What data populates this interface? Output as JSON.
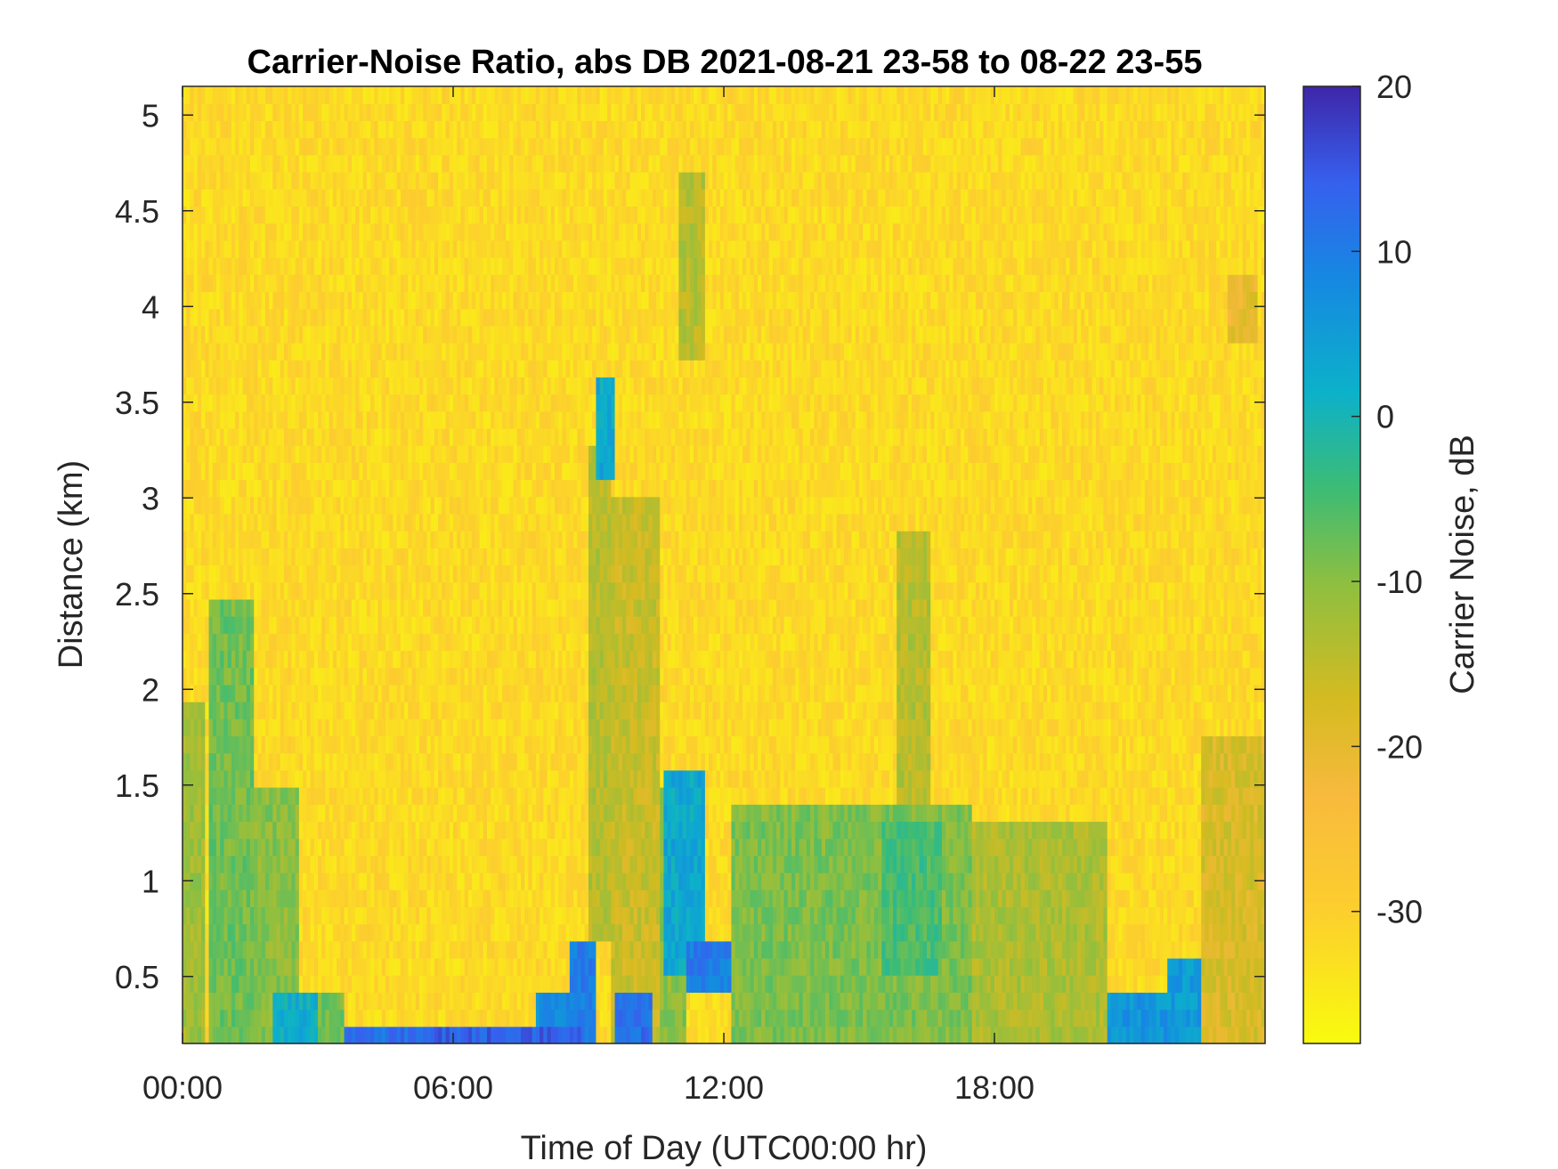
{
  "chart_data": {
    "type": "heatmap",
    "title": "Carrier-Noise Ratio, abs DB 2021-08-21 23-58 to 08-22 23-55",
    "xlabel": "Time of Day (UTC00:00 hr)",
    "ylabel": "Distance (km)",
    "colorbar_label": "Carrier Noise, dB",
    "colormap": "parula-reversed",
    "xlim_hours": [
      0,
      24
    ],
    "ylim_km": [
      0.15,
      5.15
    ],
    "clim_db": [
      -38,
      20
    ],
    "x_ticks": [
      {
        "value": 0,
        "label": "00:00"
      },
      {
        "value": 6,
        "label": "06:00"
      },
      {
        "value": 12,
        "label": "12:00"
      },
      {
        "value": 18,
        "label": "18:00"
      }
    ],
    "y_ticks": [
      {
        "value": 0.5,
        "label": "0.5"
      },
      {
        "value": 1.0,
        "label": "1"
      },
      {
        "value": 1.5,
        "label": "1.5"
      },
      {
        "value": 2.0,
        "label": "2"
      },
      {
        "value": 2.5,
        "label": "2.5"
      },
      {
        "value": 3.0,
        "label": "3"
      },
      {
        "value": 3.5,
        "label": "3.5"
      },
      {
        "value": 4.0,
        "label": "4"
      },
      {
        "value": 4.5,
        "label": "4.5"
      },
      {
        "value": 5.0,
        "label": "5"
      }
    ],
    "colorbar_ticks": [
      {
        "value": 20,
        "label": "20"
      },
      {
        "value": 10,
        "label": "10"
      },
      {
        "value": 0,
        "label": "0"
      },
      {
        "value": -10,
        "label": "-10"
      },
      {
        "value": -20,
        "label": "-20"
      },
      {
        "value": -30,
        "label": "-30"
      }
    ],
    "background_db": -32,
    "features": [
      {
        "t0": 0.0,
        "t1": 0.5,
        "d0": 0.15,
        "d1": 1.9,
        "db": -12
      },
      {
        "t0": 0.6,
        "t1": 1.6,
        "d0": 0.15,
        "d1": 2.5,
        "db": -8
      },
      {
        "t0": 1.6,
        "t1": 2.6,
        "d0": 0.15,
        "d1": 1.5,
        "db": -10
      },
      {
        "t0": 2.0,
        "t1": 3.0,
        "d0": 0.15,
        "d1": 0.45,
        "db": 2
      },
      {
        "t0": 3.0,
        "t1": 3.6,
        "d0": 0.15,
        "d1": 0.4,
        "db": -8
      },
      {
        "t0": 3.6,
        "t1": 5.6,
        "d0": 0.15,
        "d1": 0.25,
        "db": 12
      },
      {
        "t0": 5.6,
        "t1": 8.8,
        "d0": 0.15,
        "d1": 0.25,
        "db": 14
      },
      {
        "t0": 7.8,
        "t1": 8.9,
        "d0": 0.25,
        "d1": 0.45,
        "db": 8
      },
      {
        "t0": 8.6,
        "t1": 9.2,
        "d0": 0.15,
        "d1": 0.65,
        "db": 10
      },
      {
        "t0": 9.0,
        "t1": 9.5,
        "d0": 0.65,
        "d1": 3.3,
        "db": -14
      },
      {
        "t0": 9.2,
        "t1": 9.6,
        "d0": 3.1,
        "d1": 3.6,
        "db": 3
      },
      {
        "t0": 9.5,
        "t1": 10.6,
        "d0": 0.15,
        "d1": 3.0,
        "db": -16
      },
      {
        "t0": 9.6,
        "t1": 10.4,
        "d0": 0.15,
        "d1": 0.45,
        "db": 12
      },
      {
        "t0": 10.6,
        "t1": 11.2,
        "d0": 0.15,
        "d1": 1.5,
        "db": -10
      },
      {
        "t0": 10.7,
        "t1": 11.6,
        "d0": 0.55,
        "d1": 1.6,
        "db": 3
      },
      {
        "t0": 11.0,
        "t1": 11.6,
        "d0": 3.7,
        "d1": 4.7,
        "db": -14
      },
      {
        "t0": 11.2,
        "t1": 12.2,
        "d0": 0.4,
        "d1": 0.65,
        "db": 10
      },
      {
        "t0": 12.2,
        "t1": 17.5,
        "d0": 0.15,
        "d1": 1.4,
        "db": -9
      },
      {
        "t0": 15.5,
        "t1": 16.8,
        "d0": 0.5,
        "d1": 1.3,
        "db": -5
      },
      {
        "t0": 15.8,
        "t1": 16.6,
        "d0": 0.5,
        "d1": 2.8,
        "db": -14
      },
      {
        "t0": 17.5,
        "t1": 20.5,
        "d0": 0.15,
        "d1": 1.3,
        "db": -13
      },
      {
        "t0": 20.5,
        "t1": 21.8,
        "d0": 0.15,
        "d1": 0.45,
        "db": 6
      },
      {
        "t0": 21.8,
        "t1": 22.6,
        "d0": 0.15,
        "d1": 0.6,
        "db": 5
      },
      {
        "t0": 22.6,
        "t1": 24.0,
        "d0": 0.15,
        "d1": 1.8,
        "db": -18
      },
      {
        "t0": 23.2,
        "t1": 23.8,
        "d0": 3.8,
        "d1": 4.2,
        "db": -20
      }
    ]
  }
}
